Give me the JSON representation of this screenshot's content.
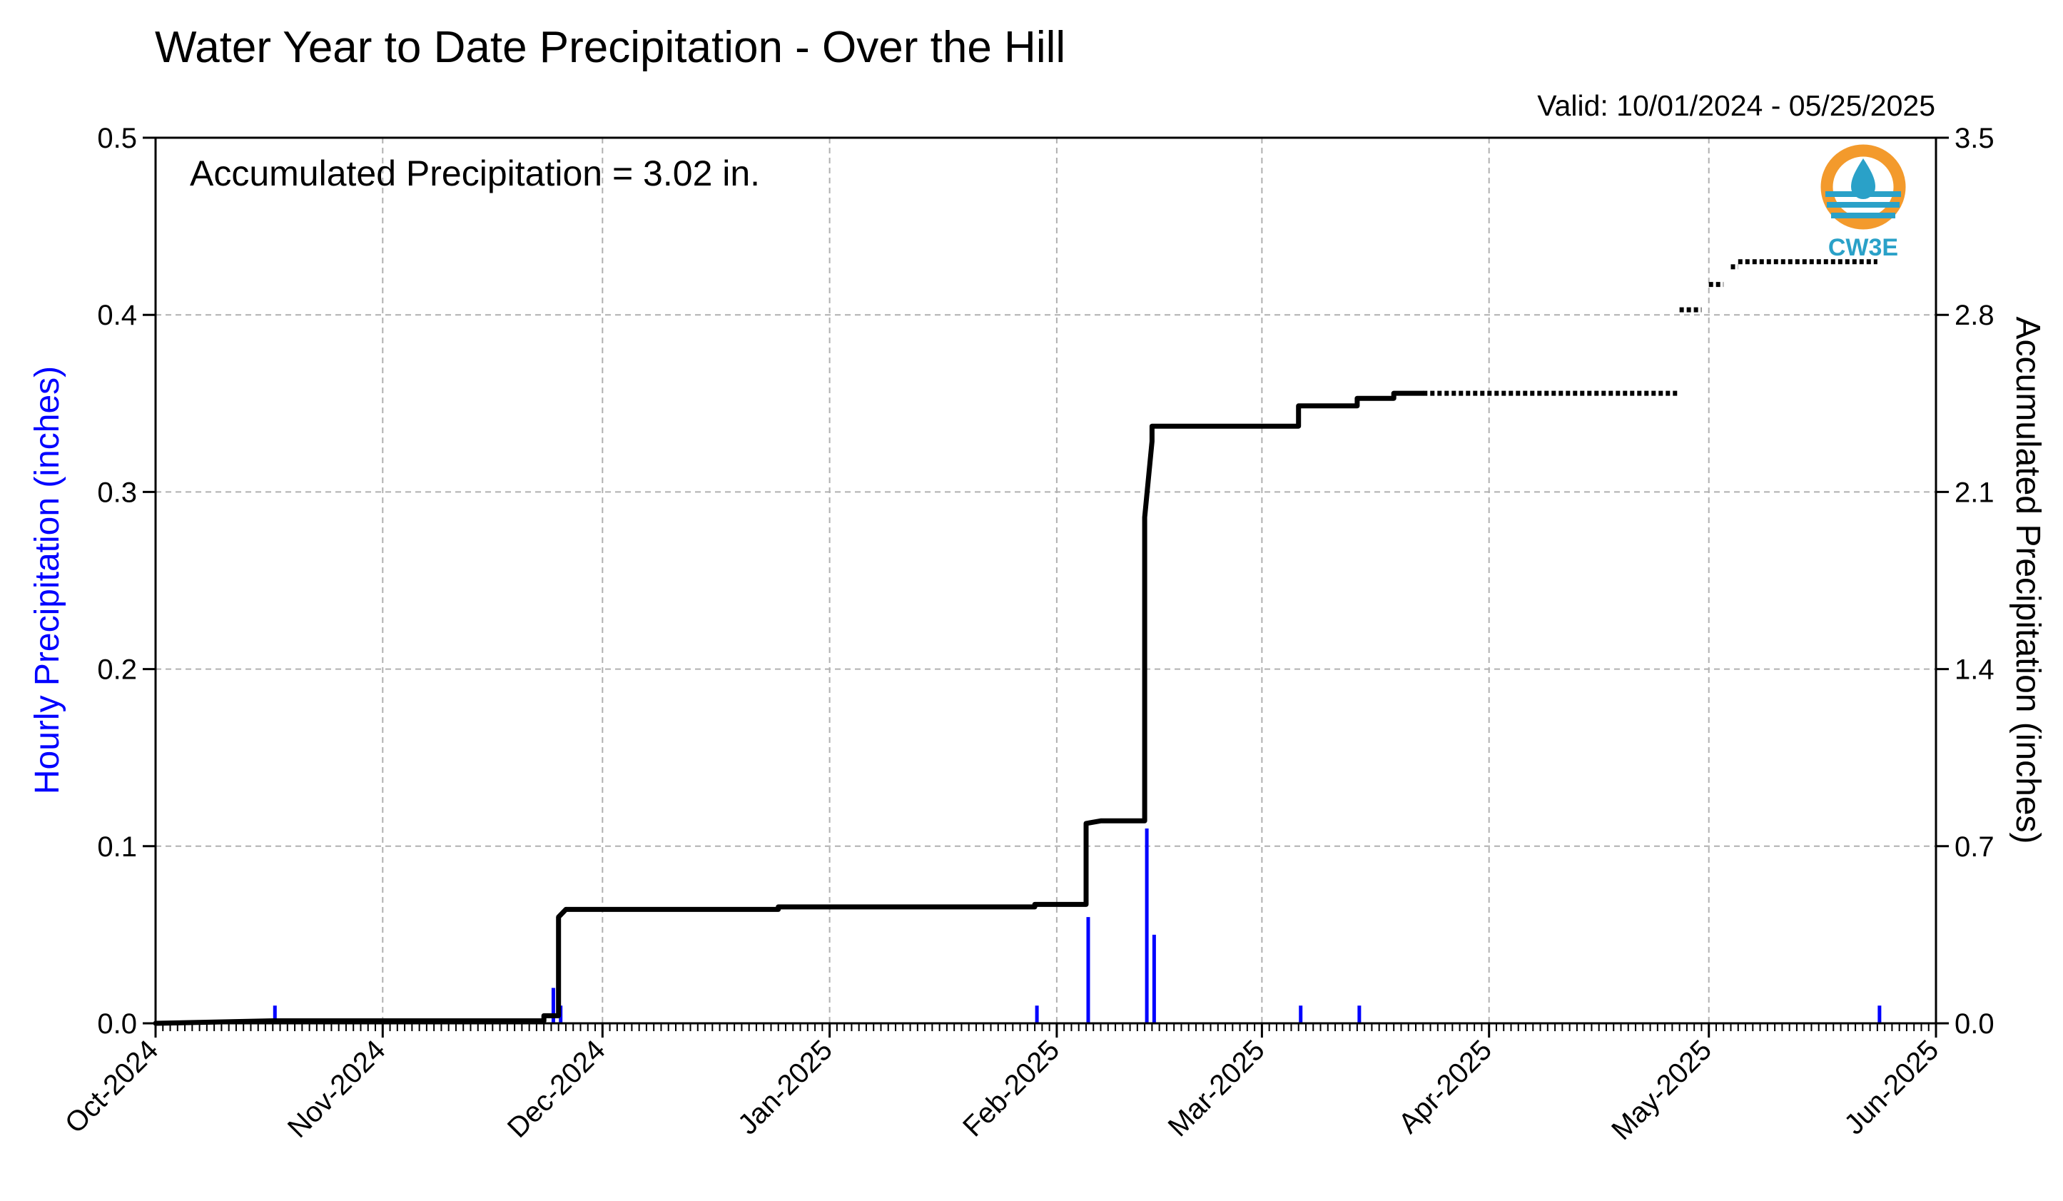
{
  "colors": {
    "hourly": "#0000ff",
    "accumulated": "#000000",
    "grid": "#b0b0b0",
    "logo_orange": "#f39a2c",
    "logo_blue": "#2aa1c8"
  },
  "logo": {
    "text": "CW3E",
    "icon": "cw3e-water-drop-logo"
  },
  "chart_data": {
    "type": "line",
    "title": "Water Year to Date Precipitation - Over the Hill",
    "subtitle": "Valid: 10/01/2024 - 05/25/2025",
    "annotation": "Accumulated Precipitation = 3.02 in.",
    "ylabel_left": "Hourly Precipitation (inches)",
    "ylabel_right": "Accumulated Precipitation (inches)",
    "xlim": [
      "2024-10-01",
      "2025-06-01"
    ],
    "ylim_left": [
      0,
      0.5
    ],
    "ylim_right": [
      0,
      3.5
    ],
    "grid": true,
    "x_ticks": [
      {
        "date": "2024-10-01",
        "label": "Oct-2024"
      },
      {
        "date": "2024-11-01",
        "label": "Nov-2024"
      },
      {
        "date": "2024-12-01",
        "label": "Dec-2024"
      },
      {
        "date": "2025-01-01",
        "label": "Jan-2025"
      },
      {
        "date": "2025-02-01",
        "label": "Feb-2025"
      },
      {
        "date": "2025-03-01",
        "label": "Mar-2025"
      },
      {
        "date": "2025-04-01",
        "label": "Apr-2025"
      },
      {
        "date": "2025-05-01",
        "label": "May-2025"
      },
      {
        "date": "2025-06-01",
        "label": "Jun-2025"
      }
    ],
    "y_ticks_left": [
      "0.0",
      "0.1",
      "0.2",
      "0.3",
      "0.4",
      "0.5"
    ],
    "y_ticks_right": [
      "0.0",
      "0.7",
      "1.4",
      "2.1",
      "2.8",
      "3.5"
    ],
    "series": [
      {
        "kind": "hourly-bars",
        "axis": "left",
        "values": [
          {
            "date": "2024-10-17",
            "value": 0.01
          },
          {
            "date": "2024-11-24",
            "value": 0.02
          },
          {
            "date": "2024-11-25",
            "value": 0.01
          },
          {
            "date": "2025-01-29",
            "value": 0.01
          },
          {
            "date": "2025-02-05",
            "value": 0.06
          },
          {
            "date": "2025-02-13",
            "value": 0.11
          },
          {
            "date": "2025-02-14",
            "value": 0.05
          },
          {
            "date": "2025-03-06",
            "value": 0.01
          },
          {
            "date": "2025-03-14",
            "value": 0.01
          },
          {
            "date": "2025-05-24",
            "value": 0.01
          }
        ]
      },
      {
        "kind": "accumulated-step",
        "axis": "right",
        "values": [
          {
            "date": "2024-10-01",
            "value": 0.0
          },
          {
            "date": "2024-10-17",
            "value": 0.01
          },
          {
            "date": "2024-11-23",
            "value": 0.01
          },
          {
            "date": "2024-11-23",
            "value": 0.03
          },
          {
            "date": "2024-11-25",
            "value": 0.03
          },
          {
            "date": "2024-11-25",
            "value": 0.15
          },
          {
            "date": "2024-11-25",
            "value": 0.42
          },
          {
            "date": "2024-11-26",
            "value": 0.45
          },
          {
            "date": "2024-12-25",
            "value": 0.45
          },
          {
            "date": "2024-12-25",
            "value": 0.46
          },
          {
            "date": "2025-01-29",
            "value": 0.46
          },
          {
            "date": "2025-01-29",
            "value": 0.47
          },
          {
            "date": "2025-02-05",
            "value": 0.47
          },
          {
            "date": "2025-02-05",
            "value": 0.79
          },
          {
            "date": "2025-02-07",
            "value": 0.8
          },
          {
            "date": "2025-02-13",
            "value": 0.8
          },
          {
            "date": "2025-02-13",
            "value": 2.0
          },
          {
            "date": "2025-02-14",
            "value": 2.3
          },
          {
            "date": "2025-02-14",
            "value": 2.36
          },
          {
            "date": "2025-03-06",
            "value": 2.36
          },
          {
            "date": "2025-03-06",
            "value": 2.44
          },
          {
            "date": "2025-03-14",
            "value": 2.44
          },
          {
            "date": "2025-03-14",
            "value": 2.47
          },
          {
            "date": "2025-03-19",
            "value": 2.47
          },
          {
            "date": "2025-03-19",
            "value": 2.49
          },
          {
            "date": "2025-03-23",
            "value": 2.49
          }
        ]
      },
      {
        "kind": "accumulated-dotted",
        "axis": "right",
        "segments": [
          {
            "start": "2025-03-23",
            "end": "2025-04-27",
            "value": 2.49
          },
          {
            "start": "2025-04-27",
            "end": "2025-04-30",
            "value": 2.82
          },
          {
            "start": "2025-05-01",
            "end": "2025-05-03",
            "value": 2.92
          },
          {
            "start": "2025-05-04",
            "end": "2025-05-05",
            "value": 2.99
          },
          {
            "start": "2025-05-05",
            "end": "2025-05-24",
            "value": 3.01
          }
        ]
      }
    ]
  }
}
